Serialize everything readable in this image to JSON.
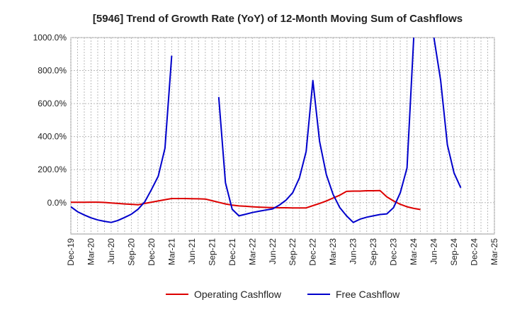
{
  "chart_data": {
    "type": "line",
    "title": "[5946]  Trend of Growth Rate (YoY) of 12-Month Moving Sum of Cashflows",
    "xlabel": "",
    "ylabel": "",
    "x_ticks": [
      "Dec-19",
      "Mar-20",
      "Jun-20",
      "Sep-20",
      "Dec-20",
      "Mar-21",
      "Jun-21",
      "Sep-21",
      "Dec-21",
      "Mar-22",
      "Jun-22",
      "Sep-22",
      "Dec-22",
      "Mar-23",
      "Jun-23",
      "Sep-23",
      "Dec-23",
      "Mar-24",
      "Jun-24",
      "Sep-24",
      "Dec-24",
      "Mar-25"
    ],
    "y_ticks": [
      "1000.0%",
      "800.0%",
      "600.0%",
      "400.0%",
      "200.0%",
      "0.0%"
    ],
    "y_tick_values": [
      1000,
      800,
      600,
      400,
      200,
      0
    ],
    "ylim": [
      -190,
      1000
    ],
    "grid": true,
    "legend_position": "bottom",
    "series": [
      {
        "name": "Operating Cashflow",
        "color": "#dd0000",
        "values": [
          2,
          2,
          2,
          3,
          3,
          1,
          -2,
          -5,
          -8,
          -10,
          -13,
          -5,
          3,
          10,
          18,
          25,
          25,
          25,
          24,
          23,
          22,
          12,
          2,
          -8,
          -15,
          -20,
          -22,
          -25,
          -27,
          -29,
          -30,
          -31,
          -31,
          -32,
          -32,
          -32,
          -18,
          -5,
          10,
          28,
          45,
          68,
          70,
          70,
          72,
          72,
          73,
          35,
          10,
          -10,
          -25,
          -35,
          -42
        ],
        "gaps": []
      },
      {
        "name": "Free Cashflow",
        "color": "#0000cc",
        "values": [
          -25,
          -55,
          -75,
          -92,
          -105,
          -113,
          -120,
          -108,
          -90,
          -70,
          -40,
          5,
          80,
          160,
          330,
          890,
          null,
          null,
          null,
          null,
          null,
          null,
          640,
          120,
          -40,
          -80,
          -70,
          -60,
          -52,
          -45,
          -38,
          -15,
          15,
          60,
          150,
          310,
          740,
          370,
          170,
          50,
          -30,
          -80,
          -120,
          -100,
          -88,
          -80,
          -72,
          -68,
          -30,
          60,
          210,
          1000,
          1500,
          1500,
          1000,
          740,
          350,
          180,
          90
        ],
        "gaps": [
          [
            15,
            22
          ]
        ]
      }
    ]
  }
}
